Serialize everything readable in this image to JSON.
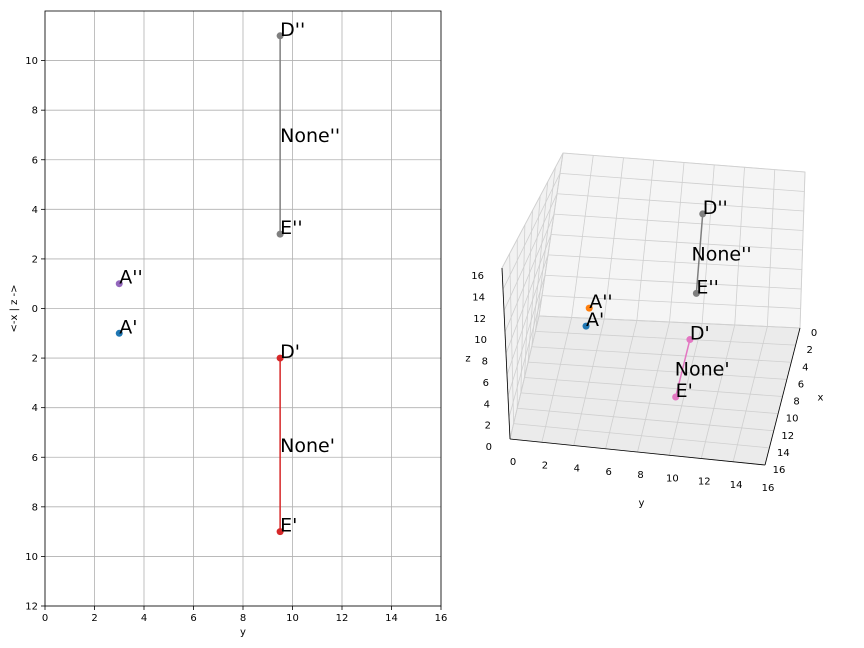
{
  "chart_data": [
    {
      "type": "scatter",
      "title": "",
      "xlabel": "y",
      "ylabel": "<-x | z ->",
      "xlim": [
        0,
        16
      ],
      "ylim": [
        -12,
        12
      ],
      "xticks": [
        0,
        2,
        4,
        6,
        8,
        10,
        12,
        14,
        16
      ],
      "yticks": [
        -12,
        -10,
        -8,
        -6,
        -4,
        -2,
        0,
        2,
        4,
        6,
        8,
        10
      ],
      "ytick_labels": [
        "12",
        "10",
        "8",
        "6",
        "4",
        "2",
        "0",
        "2",
        "4",
        "6",
        "8",
        "10"
      ],
      "grid": true,
      "points": [
        {
          "label": "A''",
          "x": 3,
          "y": 1,
          "color": "#9467bd"
        },
        {
          "label": "A'",
          "x": 3,
          "y": -1,
          "color": "#1f77b4"
        },
        {
          "label": "D''",
          "x": 9.5,
          "y": 11,
          "color": "#7f7f7f"
        },
        {
          "label": "E''",
          "x": 9.5,
          "y": 3,
          "color": "#7f7f7f"
        },
        {
          "label": "D'",
          "x": 9.5,
          "y": -2,
          "color": "#d62728"
        },
        {
          "label": "E'",
          "x": 9.5,
          "y": -9,
          "color": "#d62728"
        }
      ],
      "segments": [
        {
          "label": "None''",
          "from": [
            9.5,
            11
          ],
          "to": [
            9.5,
            3
          ],
          "color": "#7f7f7f"
        },
        {
          "label": "None'",
          "from": [
            9.5,
            -2
          ],
          "to": [
            9.5,
            -9
          ],
          "color": "#d62728"
        }
      ]
    },
    {
      "type": "scatter",
      "title": "",
      "xlabel": "x",
      "ylabel": "y",
      "zlabel": "z",
      "xlim": [
        0,
        16
      ],
      "ylim": [
        0,
        16
      ],
      "zlim": [
        0,
        16
      ],
      "xticks": [
        0,
        2,
        4,
        6,
        8,
        10,
        12,
        14,
        16
      ],
      "yticks": [
        0,
        2,
        4,
        6,
        8,
        10,
        12,
        14,
        16
      ],
      "zticks": [
        0,
        2,
        4,
        6,
        8,
        10,
        12,
        14,
        16
      ],
      "grid": true,
      "points": [
        {
          "label": "A''",
          "x": 0,
          "y": 3,
          "z": 1,
          "color": "#ff7f0e"
        },
        {
          "label": "A'",
          "x": 1,
          "y": 3,
          "z": 0,
          "color": "#1f77b4"
        },
        {
          "label": "D''",
          "x": 0,
          "y": 9.5,
          "z": 11,
          "color": "#7f7f7f"
        },
        {
          "label": "E''",
          "x": 0,
          "y": 9.5,
          "z": 3,
          "color": "#7f7f7f"
        },
        {
          "label": "D'",
          "x": 2,
          "y": 9.5,
          "z": 0,
          "color": "#e377c2"
        },
        {
          "label": "E'",
          "x": 9,
          "y": 9.5,
          "z": 0,
          "color": "#e377c2"
        }
      ],
      "segments": [
        {
          "label": "None''",
          "from": [
            0,
            9.5,
            11
          ],
          "to": [
            0,
            9.5,
            3
          ],
          "color": "#7f7f7f"
        },
        {
          "label": "None'",
          "from": [
            2,
            9.5,
            0
          ],
          "to": [
            9,
            9.5,
            0
          ],
          "color": "#e377c2"
        }
      ]
    }
  ]
}
